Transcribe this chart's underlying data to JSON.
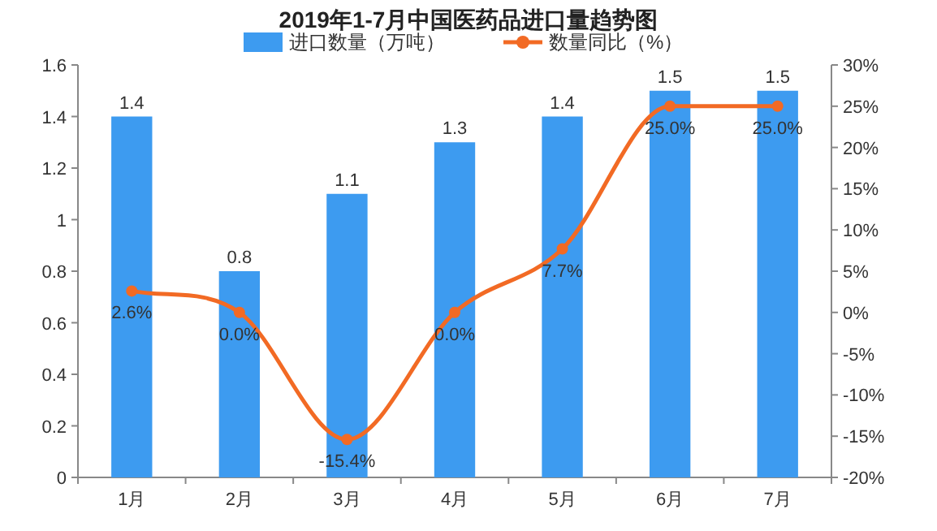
{
  "chart_data": {
    "type": "bar",
    "title": "2019年1-7月中国医药品进口量趋势图",
    "categories": [
      "1月",
      "2月",
      "3月",
      "4月",
      "5月",
      "6月",
      "7月"
    ],
    "series": [
      {
        "name": "进口数量（万吨）",
        "color": "#3d9bf0",
        "values": [
          1.4,
          0.8,
          1.1,
          1.3,
          1.4,
          1.5,
          1.5
        ],
        "value_labels": [
          "1.4",
          "0.8",
          "1.1",
          "1.3",
          "1.4",
          "1.5",
          "1.5"
        ]
      },
      {
        "name": "数量同比（%）",
        "type": "line",
        "axis": "y2",
        "color": "#f26a24",
        "marker": "circle",
        "values": [
          2.6,
          0.0,
          -15.4,
          0.0,
          7.7,
          25.0,
          25.0
        ],
        "value_labels": [
          "2.6%",
          "0.0%",
          "-15.4%",
          "0.0%",
          "7.7%",
          "25.0%",
          "25.0%"
        ]
      }
    ],
    "ylim": [
      0,
      1.6
    ],
    "yticks": [
      0,
      0.2,
      0.4,
      0.6,
      0.8,
      1,
      1.2,
      1.4,
      1.6
    ],
    "y2lim": [
      -20,
      30
    ],
    "y2ticks": [
      {
        "value": -20,
        "label": "-20%"
      },
      {
        "value": -15,
        "label": "-15%"
      },
      {
        "value": -10,
        "label": "-10%"
      },
      {
        "value": -5,
        "label": "-5%"
      },
      {
        "value": 0,
        "label": "0%"
      },
      {
        "value": 5,
        "label": "5%"
      },
      {
        "value": 10,
        "label": "10%"
      },
      {
        "value": 15,
        "label": "15%"
      },
      {
        "value": 20,
        "label": "20%"
      },
      {
        "value": 25,
        "label": "25%"
      },
      {
        "value": 30,
        "label": "30%"
      }
    ],
    "legend": "top"
  }
}
